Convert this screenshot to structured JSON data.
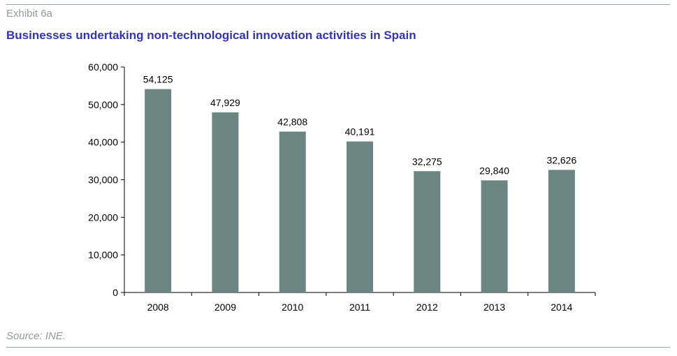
{
  "header": {
    "exhibit": "Exhibit 6a",
    "title": "Businesses undertaking non-technological innovation activities in Spain"
  },
  "footer": {
    "source": "Source: INE."
  },
  "colors": {
    "bar": "#6b8583",
    "title": "#3333b5",
    "muted": "#8d9a98",
    "rule": "#8fa6a3"
  },
  "chart_data": {
    "type": "bar",
    "title": "Businesses undertaking non-technological innovation activities in Spain",
    "xlabel": "",
    "ylabel": "",
    "categories": [
      "2008",
      "2009",
      "2010",
      "2011",
      "2012",
      "2013",
      "2014"
    ],
    "values": [
      54125,
      47929,
      42808,
      40191,
      32275,
      29840,
      32626
    ],
    "data_labels": [
      "54,125",
      "47,929",
      "42,808",
      "40,191",
      "32,275",
      "29,840",
      "32,626"
    ],
    "ylim": [
      0,
      60000
    ],
    "y_ticks": [
      0,
      10000,
      20000,
      30000,
      40000,
      50000,
      60000
    ],
    "y_tick_labels": [
      "0",
      "10,000",
      "20,000",
      "30,000",
      "40,000",
      "50,000",
      "60,000"
    ],
    "grid": false,
    "legend": "none"
  }
}
